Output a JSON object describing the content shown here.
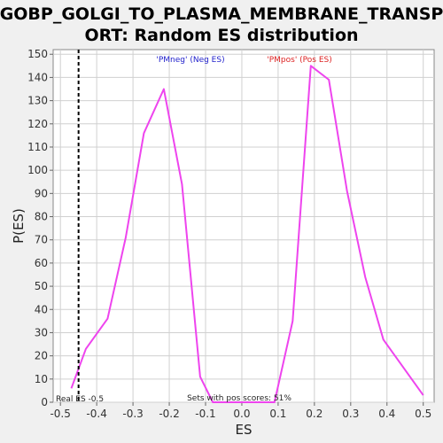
{
  "chart_data": {
    "type": "line",
    "title_line1": "GOBP_GOLGI_TO_PLASMA_MEMBRANE_TRANSP",
    "title_line2": "ORT: Random ES distribution",
    "xlabel": "ES",
    "ylabel": "P(ES)",
    "xlim": [
      -0.52,
      0.53
    ],
    "ylim": [
      0,
      152
    ],
    "xticks": [
      "-0.5",
      "-0.4",
      "-0.3",
      "-0.2",
      "-0.1",
      "0.0",
      "0.1",
      "0.2",
      "0.3",
      "0.4",
      "0.5"
    ],
    "xtick_values": [
      -0.5,
      -0.4,
      -0.3,
      -0.2,
      -0.1,
      0.0,
      0.1,
      0.2,
      0.3,
      0.4,
      0.5
    ],
    "yticks": [
      "0",
      "10",
      "20",
      "30",
      "40",
      "50",
      "60",
      "70",
      "80",
      "90",
      "100",
      "110",
      "120",
      "130",
      "140",
      "150"
    ],
    "ytick_values": [
      0,
      10,
      20,
      30,
      40,
      50,
      60,
      70,
      80,
      90,
      100,
      110,
      120,
      130,
      140,
      150
    ],
    "series": [
      {
        "color": "#ee44ee",
        "x": [
          -0.47,
          -0.43,
          -0.37,
          -0.32,
          -0.27,
          -0.215,
          -0.165,
          -0.115,
          -0.08,
          0.09,
          0.14,
          0.19,
          0.24,
          0.29,
          0.34,
          0.39,
          0.445,
          0.5
        ],
        "y": [
          6,
          23,
          36,
          71,
          116,
          135,
          94,
          11,
          0,
          0,
          35,
          145,
          139,
          91,
          54,
          27,
          15,
          3
        ]
      }
    ],
    "real_es": -0.45,
    "annotations": {
      "neg_label": "'PMneg' (Neg ES)",
      "pos_label": "'PMpos' (Pos ES)",
      "real_es_label": "Real ES -0.5",
      "sets_label": "Sets with pos scores: 51%"
    },
    "colors": {
      "neg": "#2222cc",
      "pos": "#dd2222",
      "line": "#ee44ee",
      "grid": "#d0d0d0"
    },
    "grid": true
  }
}
